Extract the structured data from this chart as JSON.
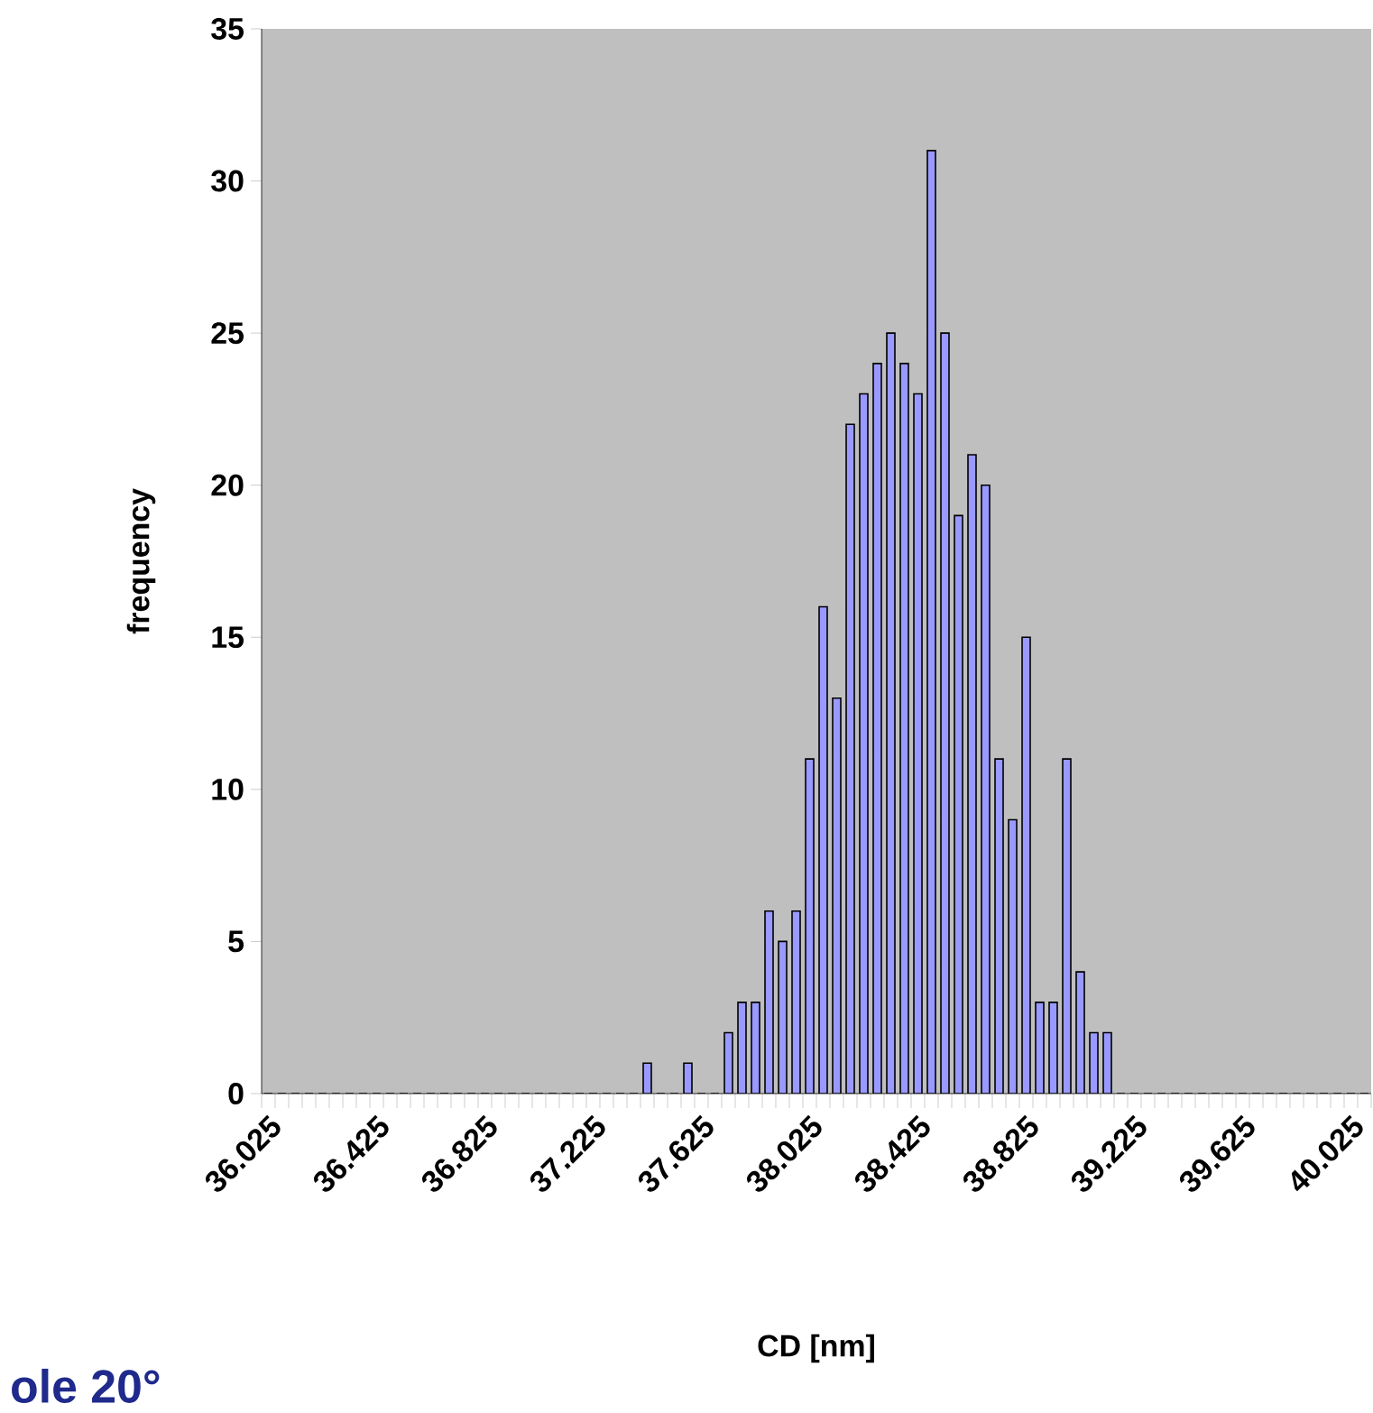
{
  "chart_data": {
    "type": "bar",
    "xlabel": "CD [nm]",
    "ylabel": "frequency",
    "annotations": [
      "ole 20°"
    ],
    "categories": [
      "36.025",
      null,
      null,
      null,
      null,
      null,
      null,
      null,
      "36.425",
      null,
      null,
      null,
      null,
      null,
      null,
      null,
      "36.825",
      null,
      null,
      null,
      null,
      null,
      null,
      null,
      "37.225",
      null,
      null,
      null,
      null,
      null,
      null,
      null,
      "37.625",
      null,
      null,
      null,
      null,
      null,
      null,
      null,
      "38.025",
      null,
      null,
      null,
      null,
      null,
      null,
      null,
      "38.425",
      null,
      null,
      null,
      null,
      null,
      null,
      null,
      "38.825",
      null,
      null,
      null,
      null,
      null,
      null,
      null,
      "39.225",
      null,
      null,
      null,
      null,
      null,
      null,
      null,
      "39.625",
      null,
      null,
      null,
      null,
      null,
      null,
      null,
      "40.025",
      null
    ],
    "values": [
      0,
      0,
      0,
      0,
      0,
      0,
      0,
      0,
      0,
      0,
      0,
      0,
      0,
      0,
      0,
      0,
      0,
      0,
      0,
      0,
      0,
      0,
      0,
      0,
      0,
      0,
      0,
      0,
      1,
      0,
      0,
      1,
      0,
      0,
      2,
      3,
      3,
      6,
      5,
      6,
      11,
      16,
      13,
      22,
      23,
      24,
      25,
      24,
      23,
      31,
      25,
      19,
      21,
      20,
      11,
      9,
      15,
      3,
      3,
      11,
      4,
      2,
      2,
      0,
      0,
      0,
      0,
      0,
      0,
      0,
      0,
      0,
      0,
      0,
      0,
      0,
      0,
      0,
      0,
      0,
      0,
      0
    ],
    "color": "#9999ff",
    "ylim": [
      0,
      35
    ],
    "yticks": [
      0,
      5,
      10,
      15,
      20,
      25,
      30,
      35
    ]
  }
}
